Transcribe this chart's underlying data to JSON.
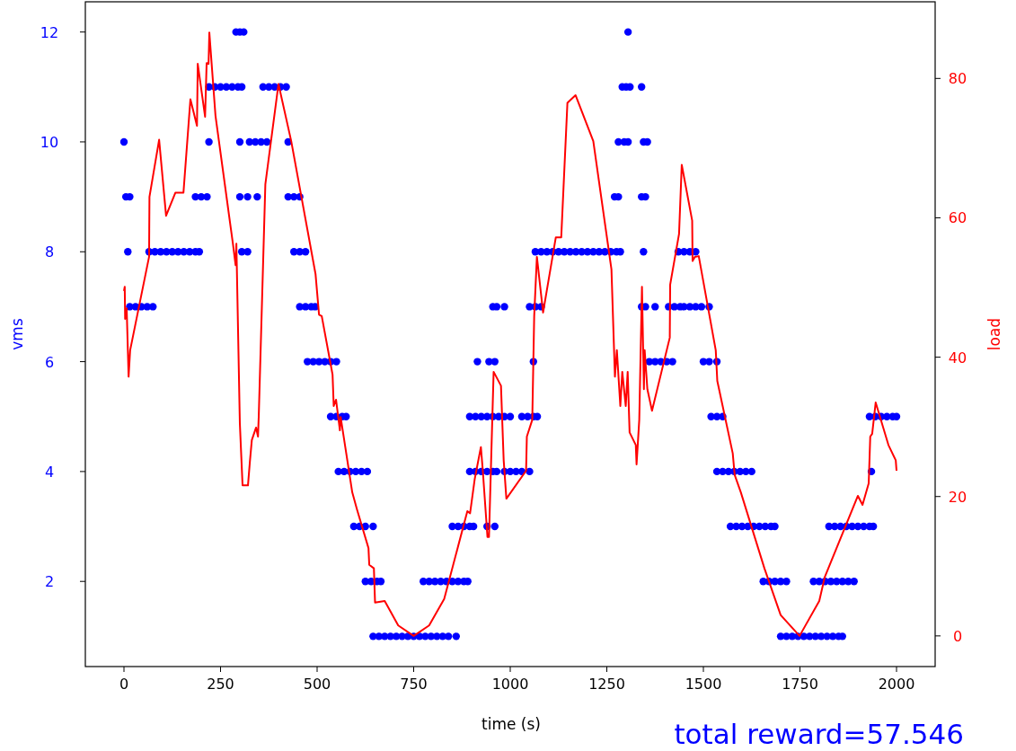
{
  "chart_data": {
    "type": "scatter",
    "xlabel": "time (s)",
    "ylabel": "vms",
    "y2label": "load",
    "annotations": [
      "total reward=57.546"
    ],
    "xlim": [
      -100,
      2100
    ],
    "xticks": [
      0,
      250,
      500,
      750,
      1000,
      1250,
      1500,
      1750,
      2000
    ],
    "ylim": [
      0.45,
      12.55
    ],
    "yticks": [
      2,
      4,
      6,
      8,
      10,
      12
    ],
    "y2lim": [
      -4.4,
      91
    ],
    "y2ticks": [
      0,
      20,
      40,
      60,
      80
    ],
    "grid": false,
    "marker": "circle",
    "series": [
      {
        "color": "#0000ff",
        "x": [
          0,
          5,
          15,
          10,
          15,
          30,
          45,
          60,
          75,
          65,
          80,
          95,
          110,
          125,
          140,
          155,
          170,
          185,
          195,
          185,
          200,
          215,
          220,
          220,
          235,
          250,
          265,
          280,
          295,
          305,
          290,
          300,
          310,
          300,
          300,
          320,
          345,
          305,
          320,
          325,
          340,
          355,
          370,
          360,
          375,
          390,
          405,
          420,
          425,
          425,
          440,
          455,
          440,
          455,
          470,
          455,
          470,
          485,
          495,
          475,
          490,
          505,
          520,
          535,
          550,
          535,
          550,
          565,
          575,
          555,
          570,
          585,
          600,
          615,
          630,
          595,
          610,
          625,
          645,
          625,
          640,
          655,
          665,
          645,
          660,
          675,
          690,
          705,
          720,
          735,
          750,
          765,
          780,
          795,
          810,
          825,
          840,
          860,
          775,
          790,
          805,
          820,
          835,
          850,
          865,
          880,
          890,
          850,
          865,
          880,
          895,
          905,
          895,
          910,
          925,
          940,
          955,
          965,
          940,
          960,
          895,
          910,
          925,
          940,
          955,
          970,
          985,
          1000,
          915,
          945,
          960,
          955,
          965,
          985,
          985,
          1000,
          1015,
          1030,
          1050,
          1030,
          1045,
          1060,
          1070,
          1060,
          1050,
          1065,
          1080,
          1065,
          1080,
          1095,
          1110,
          1125,
          1140,
          1155,
          1170,
          1185,
          1200,
          1215,
          1230,
          1245,
          1260,
          1275,
          1285,
          1305,
          1290,
          1300,
          1310,
          1340,
          1280,
          1295,
          1305,
          1345,
          1355,
          1270,
          1280,
          1340,
          1350,
          1345,
          1340,
          1350,
          1375,
          1360,
          1375,
          1390,
          1405,
          1420,
          1410,
          1425,
          1440,
          1450,
          1435,
          1450,
          1465,
          1480,
          1465,
          1480,
          1495,
          1515,
          1500,
          1515,
          1535,
          1520,
          1535,
          1550,
          1535,
          1550,
          1565,
          1580,
          1595,
          1610,
          1625,
          1570,
          1585,
          1600,
          1615,
          1630,
          1645,
          1660,
          1675,
          1685,
          1655,
          1670,
          1685,
          1700,
          1715,
          1700,
          1715,
          1730,
          1745,
          1760,
          1775,
          1790,
          1805,
          1820,
          1835,
          1850,
          1860,
          1785,
          1800,
          1815,
          1830,
          1845,
          1860,
          1875,
          1890,
          1825,
          1840,
          1855,
          1870,
          1885,
          1900,
          1915,
          1930,
          1940,
          1935,
          1930,
          1945,
          1960,
          1975,
          1990,
          2000
        ],
        "values": [
          10,
          9,
          9,
          8,
          7,
          7,
          7,
          7,
          7,
          8,
          8,
          8,
          8,
          8,
          8,
          8,
          8,
          8,
          8,
          9,
          9,
          9,
          10,
          11,
          11,
          11,
          11,
          11,
          11,
          11,
          12,
          12,
          12,
          10,
          9,
          9,
          9,
          8,
          8,
          10,
          10,
          10,
          10,
          11,
          11,
          11,
          11,
          11,
          10,
          9,
          9,
          9,
          8,
          8,
          8,
          7,
          7,
          7,
          7,
          6,
          6,
          6,
          6,
          6,
          6,
          5,
          5,
          5,
          5,
          4,
          4,
          4,
          4,
          4,
          4,
          3,
          3,
          3,
          3,
          2,
          2,
          2,
          2,
          1,
          1,
          1,
          1,
          1,
          1,
          1,
          1,
          1,
          1,
          1,
          1,
          1,
          1,
          1,
          2,
          2,
          2,
          2,
          2,
          2,
          2,
          2,
          2,
          3,
          3,
          3,
          3,
          3,
          4,
          4,
          4,
          4,
          4,
          4,
          3,
          3,
          5,
          5,
          5,
          5,
          5,
          5,
          5,
          5,
          6,
          6,
          6,
          7,
          7,
          7,
          4,
          4,
          4,
          4,
          4,
          5,
          5,
          5,
          5,
          6,
          7,
          7,
          7,
          8,
          8,
          8,
          8,
          8,
          8,
          8,
          8,
          8,
          8,
          8,
          8,
          8,
          8,
          8,
          8,
          12,
          11,
          11,
          11,
          11,
          10,
          10,
          10,
          10,
          10,
          9,
          9,
          9,
          9,
          8,
          7,
          7,
          7,
          6,
          6,
          6,
          6,
          6,
          7,
          7,
          7,
          7,
          8,
          8,
          8,
          8,
          7,
          7,
          7,
          7,
          6,
          6,
          6,
          5,
          5,
          5,
          4,
          4,
          4,
          4,
          4,
          4,
          4,
          3,
          3,
          3,
          3,
          3,
          3,
          3,
          3,
          3,
          2,
          2,
          2,
          2,
          2,
          1,
          1,
          1,
          1,
          1,
          1,
          1,
          1,
          1,
          1,
          1,
          1,
          2,
          2,
          2,
          2,
          2,
          2,
          2,
          2,
          3,
          3,
          3,
          3,
          3,
          3,
          3,
          3,
          3,
          4,
          5,
          5,
          5,
          5,
          5,
          5
        ]
      },
      {
        "type": "line",
        "axis": "y2",
        "color": "#ff0000",
        "marker": "none",
        "line_style": "solid",
        "x": [
          0,
          2,
          3,
          7,
          12,
          16,
          65,
          66,
          91,
          109,
          133,
          154,
          172,
          189,
          191,
          210,
          214,
          219,
          221,
          237,
          282,
          289,
          291,
          300,
          307,
          321,
          326,
          331,
          342,
          347,
          349,
          366,
          400,
          433,
          496,
          505,
          512,
          540,
          543,
          549,
          559,
          561,
          591,
          603,
          633,
          635,
          647,
          650,
          675,
          710,
          750,
          790,
          829,
          889,
          896,
          908,
          924,
          929,
          941,
          945,
          952,
          957,
          976,
          983,
          990,
          1041,
          1043,
          1057,
          1062,
          1069,
          1085,
          1118,
          1132,
          1148,
          1169,
          1215,
          1262,
          1271,
          1276,
          1285,
          1290,
          1299,
          1304,
          1309,
          1325,
          1327,
          1334,
          1341,
          1346,
          1348,
          1355,
          1367,
          1413,
          1414,
          1437,
          1444,
          1471,
          1472,
          1478,
          1488,
          1532,
          1536,
          1576,
          1581,
          1597,
          1658,
          1700,
          1749,
          1800,
          1814,
          1900,
          1912,
          1928,
          1932,
          1937,
          1946,
          1979,
          1998,
          2000
        ],
        "values": [
          49.5,
          50.1,
          45.5,
          47.0,
          37.2,
          41.0,
          54.4,
          63.0,
          71.2,
          60.3,
          63.6,
          63.6,
          77.0,
          73.2,
          82.1,
          74.5,
          82.2,
          82.1,
          86.6,
          74.6,
          56.3,
          53.2,
          56.3,
          30.5,
          21.6,
          21.6,
          25.0,
          28.1,
          29.9,
          28.6,
          31.7,
          64.8,
          79.2,
          71.0,
          51.9,
          46.1,
          45.9,
          37.5,
          33.0,
          33.9,
          29.5,
          31.4,
          20.6,
          18.2,
          12.6,
          10.2,
          9.7,
          4.8,
          5.0,
          1.5,
          0,
          1.5,
          5.3,
          17.9,
          17.6,
          22.5,
          27.1,
          23.7,
          14.2,
          14.2,
          28.1,
          37.9,
          35.9,
          25.2,
          19.7,
          23.7,
          28.6,
          31.0,
          45.9,
          54.4,
          46.4,
          57.2,
          57.2,
          76.5,
          77.6,
          71.0,
          52.6,
          37.2,
          41.0,
          33.0,
          37.9,
          33.0,
          37.9,
          29.2,
          27.4,
          24.6,
          31.0,
          50.1,
          35.4,
          41.0,
          35.4,
          32.3,
          42.8,
          50.4,
          57.7,
          67.6,
          59.6,
          53.8,
          54.4,
          54.5,
          41.0,
          36.6,
          26.2,
          23.1,
          20.6,
          9.7,
          3,
          0,
          5,
          8.4,
          20.1,
          18.8,
          21.9,
          28.6,
          29.0,
          33.5,
          27.4,
          25.2,
          23.7
        ]
      }
    ]
  }
}
